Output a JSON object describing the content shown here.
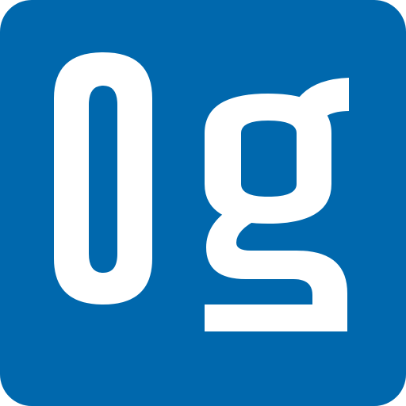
{
  "logo": {
    "text": "0g",
    "background_color": "#0068ad",
    "glyph_color": "#ffffff"
  }
}
